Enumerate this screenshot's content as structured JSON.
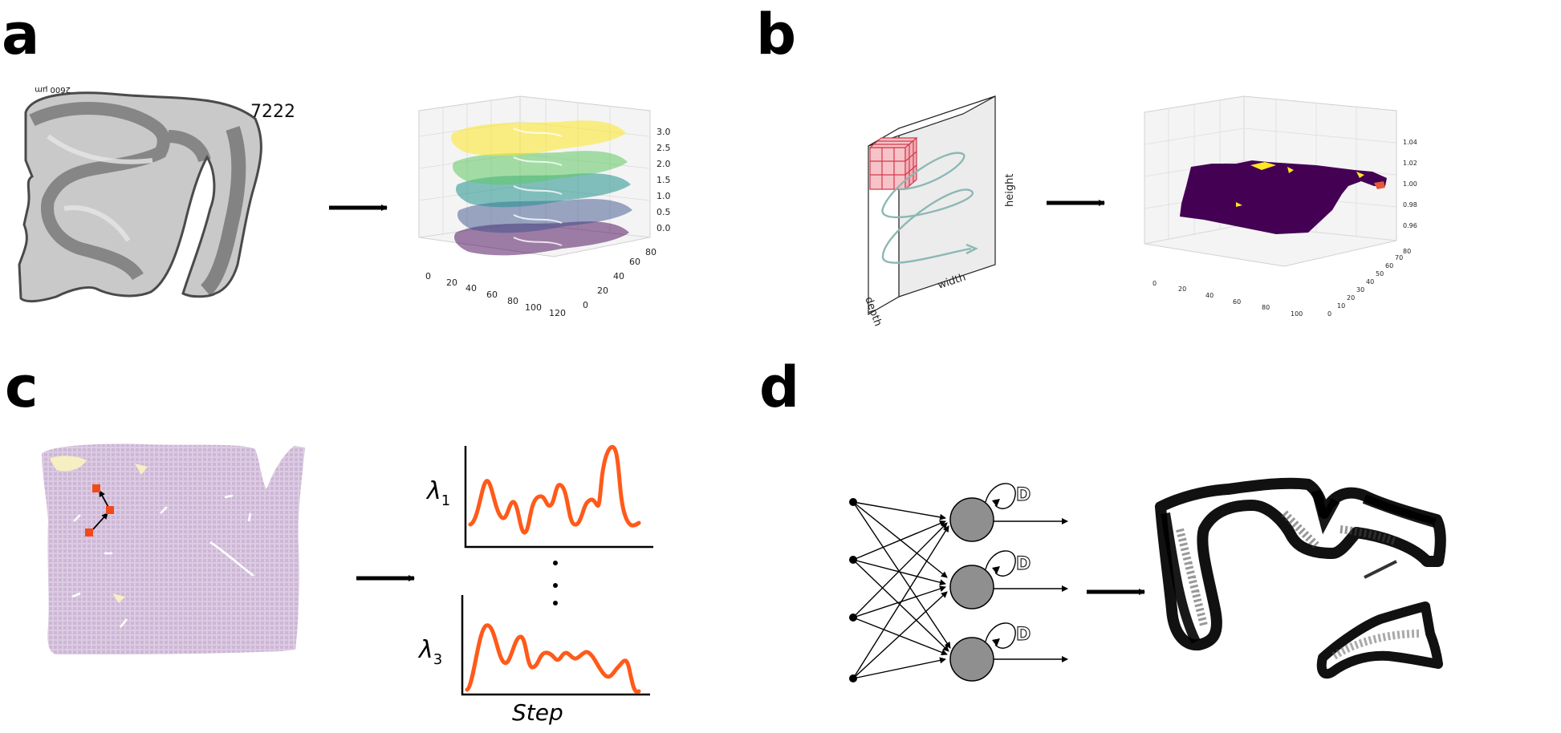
{
  "panels": {
    "a": {
      "letter": "a",
      "section_number": "7222",
      "scale_bar_label": "2600 µm",
      "axis_z_ticks": [
        "3.0",
        "2.5",
        "2.0",
        "1.5",
        "1.0",
        "0.5",
        "0.0"
      ],
      "axis_x_ticks": [
        "0",
        "20",
        "40",
        "60",
        "80",
        "100",
        "120"
      ],
      "axis_y_ticks": [
        "0",
        "20",
        "40",
        "60",
        "80"
      ]
    },
    "b": {
      "letter": "b",
      "label_height": "height",
      "label_width": "width",
      "label_depth": "depth",
      "axis_z_ticks": [
        "1.04",
        "1.02",
        "1.00",
        "0.98",
        "0.96"
      ],
      "axis_x_ticks": [
        "0",
        "20",
        "40",
        "60",
        "80",
        "100"
      ],
      "axis_y_ticks": [
        "0",
        "10",
        "20",
        "30",
        "40",
        "50",
        "60",
        "70",
        "80"
      ]
    },
    "c": {
      "letter": "c",
      "lambda1": "λ",
      "lambda1_sub": "1",
      "lambda3": "λ",
      "lambda3_sub": "3",
      "x_label": "Step"
    },
    "d": {
      "letter": "d",
      "delay_label": "D"
    }
  },
  "colors": {
    "viridis": [
      "#fde725",
      "#5ec962",
      "#21918c",
      "#3b528b",
      "#440154"
    ],
    "lambda_curve": "#ff5a1a",
    "tissue_lilac": "#d9c7df",
    "node_fill": "#8f8f8f"
  }
}
